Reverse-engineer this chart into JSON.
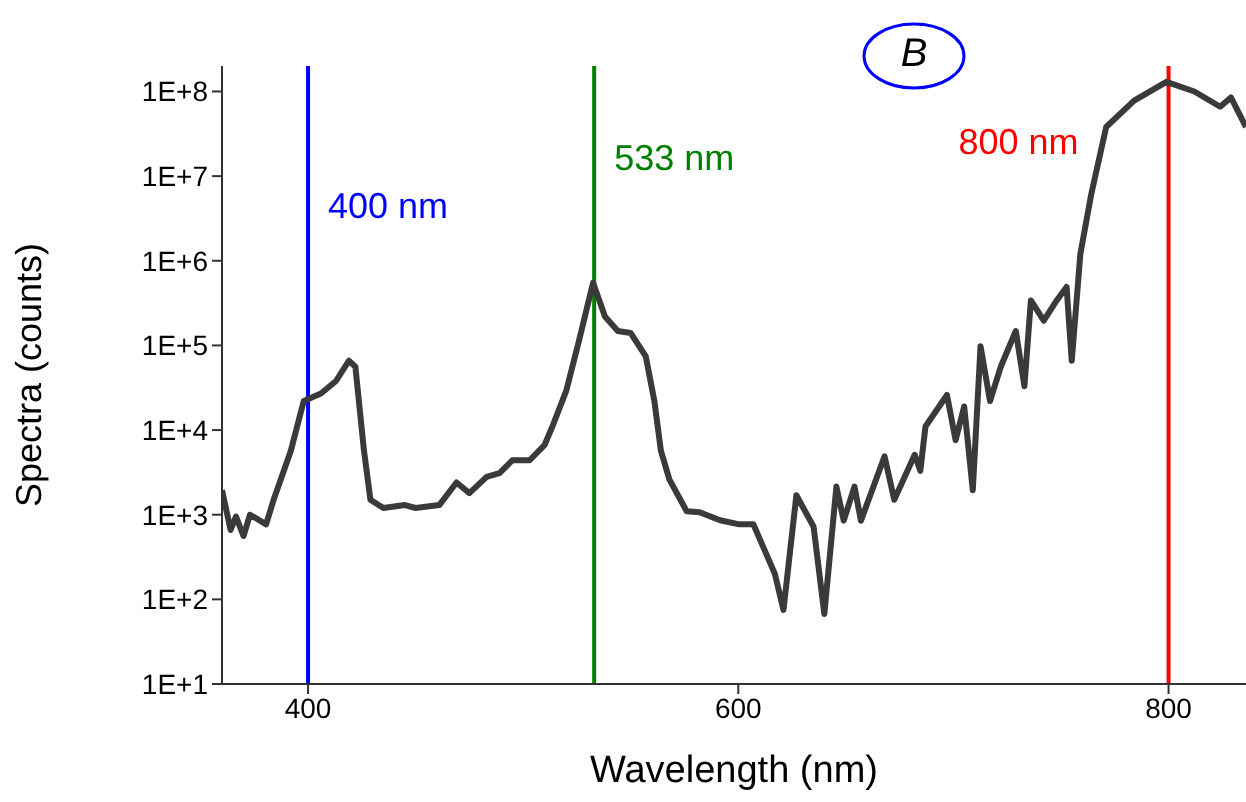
{
  "chart_data": {
    "type": "line",
    "xlabel": "Wavelength (nm)",
    "ylabel": "Spectra (counts)",
    "annotations": [
      "B"
    ],
    "log": "y",
    "marker": "none",
    "line_style": "solid",
    "xlim": [
      360,
      836
    ],
    "xticks": [
      400,
      600,
      800
    ],
    "ylim": [
      10,
      200000000
    ],
    "yticks": [
      {
        "value": 10,
        "label": "1E+1"
      },
      {
        "value": 100,
        "label": "1E+2"
      },
      {
        "value": 1000,
        "label": "1E+3"
      },
      {
        "value": 10000,
        "label": "1E+4"
      },
      {
        "value": 100000,
        "label": "1E+5"
      },
      {
        "value": 1000000,
        "label": "1E+6"
      },
      {
        "value": 10000000,
        "label": "1E+7"
      },
      {
        "value": 100000000,
        "label": "1E+8"
      }
    ],
    "ref_lines": [
      {
        "axis": "x",
        "value": 400,
        "label": "400 nm",
        "color": "#0000ff"
      },
      {
        "axis": "x",
        "value": 533,
        "label": "533 nm",
        "color": "#008000"
      },
      {
        "axis": "x",
        "value": 800,
        "label": "800 nm",
        "color": "#ff0000"
      }
    ],
    "series": [
      {
        "color": "#3a3a3a",
        "x": [
          360,
          364,
          366.5,
          370,
          373,
          380.5,
          384,
          392,
          398,
          406,
          413,
          419,
          422,
          426,
          429,
          435,
          445,
          450,
          461,
          469,
          475,
          483,
          489,
          495,
          503,
          510,
          514,
          520,
          526,
          532.5,
          538,
          544,
          550,
          557,
          561,
          564,
          568,
          576,
          582,
          591.5,
          600.5,
          607,
          617,
          621,
          627,
          635,
          640,
          645.6,
          649,
          654,
          657,
          668,
          672.5,
          682,
          684.6,
          687,
          697,
          701,
          705,
          709,
          712.6,
          717,
          722,
          729,
          733,
          736,
          742,
          748,
          752.6,
          755,
          759,
          764,
          771,
          784,
          799,
          812,
          824,
          829,
          836
        ],
        "values": [
          1950,
          660,
          950,
          560,
          1000,
          770,
          1500,
          5700,
          22000,
          27000,
          38000,
          66000,
          56000,
          5700,
          1500,
          1200,
          1300,
          1200,
          1300,
          2400,
          1800,
          2800,
          3100,
          4400,
          4400,
          6700,
          11700,
          29000,
          115000,
          550000,
          220000,
          148000,
          140000,
          74000,
          22000,
          5700,
          2600,
          1100,
          1070,
          860,
          770,
          770,
          200,
          75,
          1700,
          720,
          67,
          2150,
          850,
          2150,
          850,
          4900,
          1500,
          5100,
          3300,
          11000,
          26000,
          7600,
          19000,
          1950,
          98000,
          22000,
          56000,
          148000,
          33000,
          340000,
          196000,
          340000,
          490000,
          66000,
          1200000,
          6000000,
          38000000,
          78000000,
          130000000,
          100000000,
          66000000,
          85000000,
          38000000
        ]
      }
    ]
  }
}
